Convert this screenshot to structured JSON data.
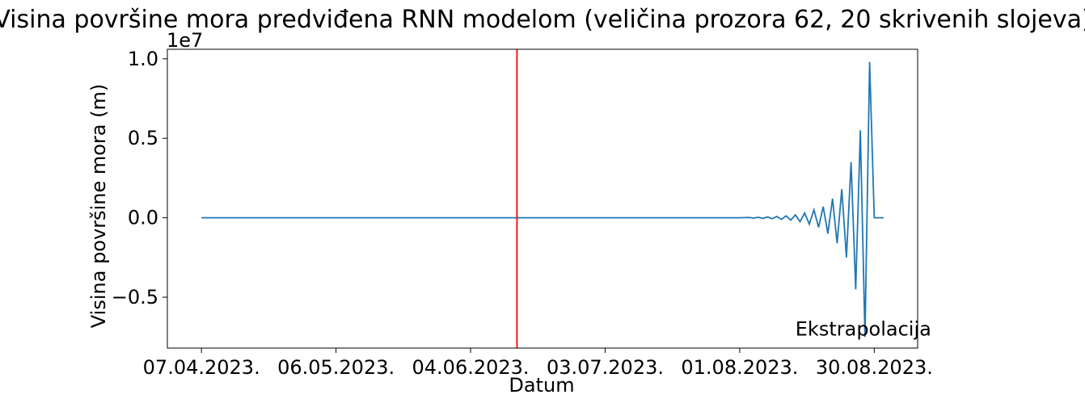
{
  "chart_data": {
    "type": "line",
    "title": "Visina površine mora predviđena RNN modelom (veličina prozora 62, 20 skrivenih slojeva)",
    "xlabel": "Datum",
    "ylabel": "Visina površine mora (m)",
    "y_offset_label": "1e7",
    "y_multiplier": 10000000,
    "x_start": "2023-04-07",
    "x_end": "2023-09-01",
    "x_ticks": [
      "2023-04-07",
      "2023-05-06",
      "2023-06-04",
      "2023-07-03",
      "2023-08-01",
      "2023-08-30"
    ],
    "x_tick_labels": [
      "07.04.2023.",
      "06.05.2023.",
      "04.06.2023.",
      "03.07.2023.",
      "01.08.2023.",
      "30.08.2023."
    ],
    "ylim": [
      -0.82,
      1.06
    ],
    "y_ticks": [
      -0.5,
      0.0,
      0.5,
      1.0
    ],
    "y_tick_labels": [
      "−0.5",
      "0.0",
      "0.5",
      "1.0"
    ],
    "grid": false,
    "vline": {
      "x": "2023-06-14",
      "color": "#ff0000"
    },
    "annotation": {
      "text": "Ekstrapolacija",
      "x": "2023-08-13",
      "y": -0.7,
      "color": "#ff0000"
    },
    "series": [
      {
        "color": "#1f77b4",
        "x": [
          "2023-04-07",
          "2023-08-01",
          "2023-08-03",
          "2023-08-04",
          "2023-08-05",
          "2023-08-06",
          "2023-08-07",
          "2023-08-08",
          "2023-08-09",
          "2023-08-10",
          "2023-08-11",
          "2023-08-12",
          "2023-08-13",
          "2023-08-14",
          "2023-08-15",
          "2023-08-16",
          "2023-08-17",
          "2023-08-18",
          "2023-08-19",
          "2023-08-20",
          "2023-08-21",
          "2023-08-22",
          "2023-08-23",
          "2023-08-24",
          "2023-08-25",
          "2023-08-26",
          "2023-08-27",
          "2023-08-28",
          "2023-08-29",
          "2023-08-30",
          "2023-08-31",
          "2023-09-01"
        ],
        "values": [
          0.0,
          0.0,
          0.002,
          -0.002,
          0.003,
          -0.004,
          0.005,
          -0.006,
          0.008,
          -0.01,
          0.012,
          -0.015,
          0.018,
          -0.025,
          0.03,
          -0.04,
          0.05,
          -0.06,
          0.07,
          -0.1,
          0.12,
          -0.16,
          0.18,
          -0.25,
          0.35,
          -0.45,
          0.55,
          -0.75,
          0.98,
          0.0,
          0.0,
          0.0
        ]
      }
    ]
  }
}
